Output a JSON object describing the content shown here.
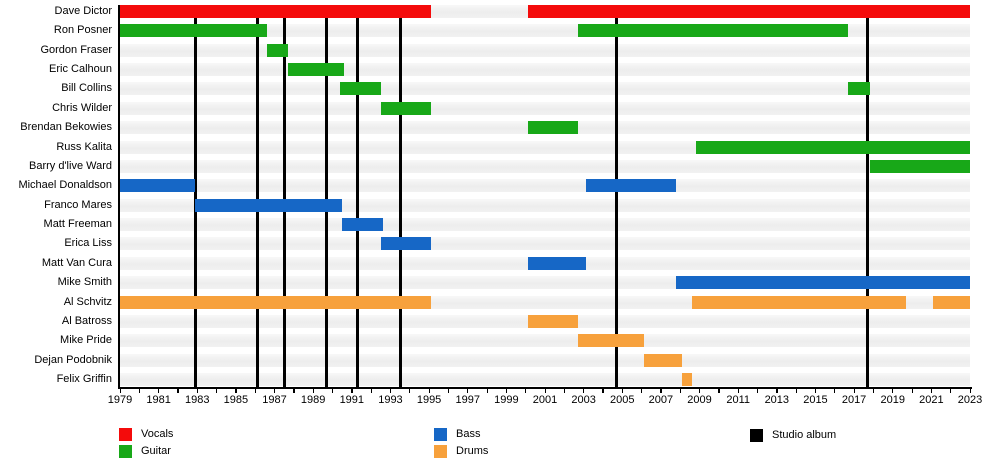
{
  "chart_data": {
    "type": "timeline",
    "title": "",
    "x_axis": {
      "start": 1979,
      "end": 2023,
      "minor_tick_every_years": 1,
      "tick_labels": [
        "1979",
        "1981",
        "1983",
        "1985",
        "1987",
        "1989",
        "1991",
        "1993",
        "1995",
        "1997",
        "1999",
        "2001",
        "2003",
        "2005",
        "2007",
        "2009",
        "2011",
        "2013",
        "2015",
        "2017",
        "2019",
        "2021",
        "2023"
      ]
    },
    "colors": {
      "Vocals": "#f40b0b",
      "Guitar": "#18a818",
      "Bass": "#1667c6",
      "Drums": "#f7a13c",
      "album_marker": "#000000",
      "row_stripe": "#ededed"
    },
    "legend": [
      {
        "label": "Vocals",
        "color": "#f40b0b"
      },
      {
        "label": "Guitar",
        "color": "#18a818"
      },
      {
        "label": "Bass",
        "color": "#1667c6"
      },
      {
        "label": "Drums",
        "color": "#f7a13c"
      },
      {
        "label": "Studio album",
        "color": "#000000"
      }
    ],
    "album_marker_years": [
      1982.9,
      1986.1,
      1987.5,
      1989.7,
      1991.3,
      1993.5,
      2004.7,
      2017.7
    ],
    "rows": [
      {
        "name": "Dave Dictor",
        "role": "Vocals",
        "periods": [
          [
            1979,
            1995.1
          ],
          [
            2000.1,
            2023
          ]
        ]
      },
      {
        "name": "Ron Posner",
        "role": "Guitar",
        "periods": [
          [
            1979,
            1986.6
          ],
          [
            2002.7,
            2016.7
          ]
        ]
      },
      {
        "name": "Gordon Fraser",
        "role": "Guitar",
        "periods": [
          [
            1986.6,
            1987.7
          ]
        ]
      },
      {
        "name": "Eric Calhoun",
        "role": "Guitar",
        "periods": [
          [
            1987.7,
            1990.6
          ]
        ]
      },
      {
        "name": "Bill Collins",
        "role": "Guitar",
        "periods": [
          [
            1990.4,
            1992.5
          ],
          [
            2016.7,
            2017.8
          ]
        ]
      },
      {
        "name": "Chris Wilder",
        "role": "Guitar",
        "periods": [
          [
            1992.5,
            1995.1
          ]
        ]
      },
      {
        "name": "Brendan Bekowies",
        "role": "Guitar",
        "periods": [
          [
            2000.1,
            2002.7
          ]
        ]
      },
      {
        "name": "Russ Kalita",
        "role": "Guitar",
        "periods": [
          [
            2008.8,
            2023
          ]
        ]
      },
      {
        "name": "Barry d'live Ward",
        "role": "Guitar",
        "periods": [
          [
            2017.8,
            2023
          ]
        ]
      },
      {
        "name": "Michael Donaldson",
        "role": "Bass",
        "periods": [
          [
            1979,
            1982.9
          ],
          [
            2003.1,
            2007.8
          ]
        ]
      },
      {
        "name": "Franco Mares",
        "role": "Bass",
        "periods": [
          [
            1982.9,
            1990.5
          ]
        ]
      },
      {
        "name": "Matt Freeman",
        "role": "Bass",
        "periods": [
          [
            1990.5,
            1992.6
          ]
        ]
      },
      {
        "name": "Erica Liss",
        "role": "Bass",
        "periods": [
          [
            1992.5,
            1995.1
          ]
        ]
      },
      {
        "name": "Matt Van Cura",
        "role": "Bass",
        "periods": [
          [
            2000.1,
            2003.1
          ]
        ]
      },
      {
        "name": "Mike Smith",
        "role": "Bass",
        "periods": [
          [
            2007.8,
            2023
          ]
        ]
      },
      {
        "name": "Al Schvitz",
        "role": "Drums",
        "periods": [
          [
            1979,
            1995.1
          ],
          [
            2008.6,
            2019.7
          ],
          [
            2021.1,
            2023
          ]
        ]
      },
      {
        "name": "Al Batross",
        "role": "Drums",
        "periods": [
          [
            2000.1,
            2002.7
          ]
        ]
      },
      {
        "name": "Mike Pride",
        "role": "Drums",
        "periods": [
          [
            2002.7,
            2006.1
          ]
        ]
      },
      {
        "name": "Dejan Podobnik",
        "role": "Drums",
        "periods": [
          [
            2006.1,
            2008.1
          ]
        ]
      },
      {
        "name": "Felix Griffin",
        "role": "Drums",
        "periods": [
          [
            2008.1,
            2008.6
          ]
        ]
      }
    ]
  }
}
